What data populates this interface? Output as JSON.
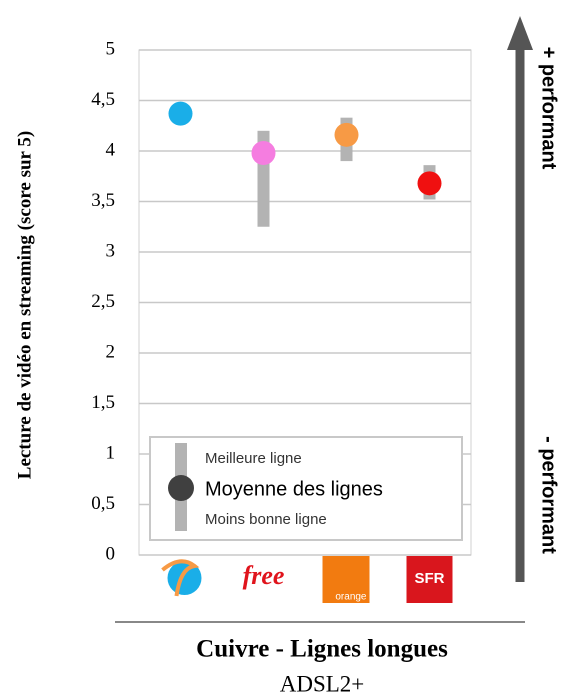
{
  "chart_data": {
    "type": "dot-range",
    "ylabel": "Lecture de vidéo en streaming (score sur 5)",
    "categories": [
      null,
      "free",
      "orange",
      "SFR"
    ],
    "values": [
      4.37,
      3.98,
      4.16,
      3.68
    ],
    "low": [
      null,
      3.25,
      3.9,
      3.52
    ],
    "high": [
      null,
      4.2,
      4.33,
      3.86
    ],
    "colors": [
      "#1aaee8",
      "#f57de0",
      "#f79a45",
      "#f01010"
    ],
    "ylim": [
      0,
      5
    ],
    "yticks": [
      0,
      {
        "value": 0.5,
        "label": "0,5"
      },
      1,
      {
        "value": 1.5,
        "label": "1,5"
      },
      2,
      {
        "value": 2.5,
        "label": "2,5"
      },
      3,
      {
        "value": 3.5,
        "label": "3,5"
      },
      4,
      {
        "value": 4.5,
        "label": "4,5"
      },
      5
    ],
    "grid": true,
    "legend": {
      "best": "Meilleure ligne",
      "mean": "Moyenne des lignes",
      "worst": "Moins bonne ligne"
    },
    "arrow": {
      "top": "+ performant",
      "bottom": "- performant"
    },
    "footer": {
      "title": "Cuivre - Lignes longues",
      "subtitle": "ADSL2+"
    }
  }
}
